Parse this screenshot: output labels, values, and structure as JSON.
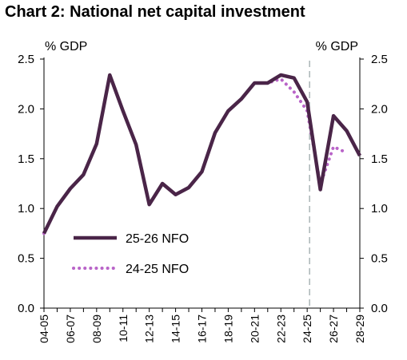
{
  "chart_data": {
    "type": "line",
    "title": "Chart 2: National net capital investment",
    "unit_left": "% GDP",
    "unit_right": "% GDP",
    "x": [
      "04-05",
      "05-06",
      "06-07",
      "07-08",
      "08-09",
      "09-10",
      "10-11",
      "11-12",
      "12-13",
      "13-14",
      "14-15",
      "15-16",
      "16-17",
      "17-18",
      "18-19",
      "19-20",
      "20-21",
      "21-22",
      "22-23",
      "23-24",
      "24-25",
      "25-26",
      "26-27",
      "27-28",
      "28-29"
    ],
    "x_tick_labels": [
      "04-05",
      "06-07",
      "08-09",
      "10-11",
      "12-13",
      "14-15",
      "16-17",
      "18-19",
      "20-21",
      "22-23",
      "24-25",
      "26-27",
      "28-29"
    ],
    "ylim": [
      0,
      2.5
    ],
    "y_ticks": [
      "0.0",
      "0.5",
      "1.0",
      "1.5",
      "2.0",
      "2.5"
    ],
    "forecast_divider_at": "24-25",
    "grid": false,
    "legend_placement": "lower-left",
    "series": [
      {
        "name": "25-26 NFO",
        "style": "solid",
        "color": "#4a2548",
        "values": [
          0.75,
          1.02,
          1.2,
          1.34,
          1.65,
          2.34,
          1.98,
          1.64,
          1.04,
          1.25,
          1.14,
          1.21,
          1.37,
          1.76,
          1.98,
          2.1,
          2.26,
          2.26,
          2.34,
          2.31,
          2.07,
          1.19,
          1.93,
          1.78,
          1.53
        ]
      },
      {
        "name": "24-25 NFO",
        "style": "dotted",
        "color": "#b964c8",
        "values": [
          0.75,
          1.02,
          1.2,
          1.34,
          1.65,
          2.34,
          1.98,
          1.64,
          1.04,
          1.25,
          1.14,
          1.21,
          1.37,
          1.76,
          1.98,
          2.1,
          2.26,
          2.26,
          2.3,
          2.17,
          1.98,
          1.24,
          1.62,
          1.56,
          null
        ]
      }
    ]
  },
  "colors": {
    "divider": "#a9b4b6",
    "axis": "#000000"
  }
}
